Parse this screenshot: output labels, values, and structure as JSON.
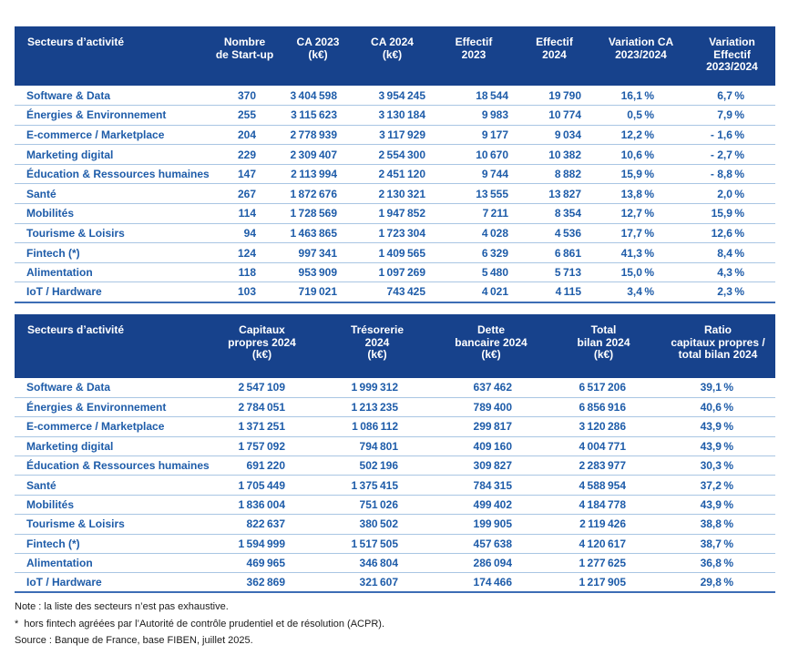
{
  "colors": {
    "header_bg": "#17428C",
    "header_text": "#FFFFFF",
    "row_text": "#1E5CA9",
    "separator": "#A9C6E3",
    "table_bottom_border": "#3D6DB5",
    "note_text": "#1A1A1A"
  },
  "table1": {
    "columns": [
      "Secteurs d’activité",
      "Nombre\nde Start-up",
      "CA 2023\n(k€)",
      "CA 2024\n(k€)",
      "Effectif\n2023",
      "Effectif\n2024",
      "Variation CA\n2023/2024",
      "Variation\nEffectif\n2023/2024"
    ],
    "rows": [
      [
        "Software & Data",
        "370",
        "3 404 598",
        "3 954 245",
        "18 544",
        "19 790",
        "16,1 %",
        "6,7 %"
      ],
      [
        "Énergies & Environnement",
        "255",
        "3 115 623",
        "3 130 184",
        "9 983",
        "10 774",
        "0,5 %",
        "7,9 %"
      ],
      [
        "E-commerce / Marketplace",
        "204",
        "2 778 939",
        "3 117 929",
        "9 177",
        "9 034",
        "12,2 %",
        "- 1,6 %"
      ],
      [
        "Marketing digital",
        "229",
        "2 309 407",
        "2 554 300",
        "10 670",
        "10 382",
        "10,6 %",
        "- 2,7 %"
      ],
      [
        "Éducation & Ressources humaines",
        "147",
        "2 113 994",
        "2 451 120",
        "9 744",
        "8 882",
        "15,9 %",
        "- 8,8 %"
      ],
      [
        "Santé",
        "267",
        "1 872 676",
        "2 130 321",
        "13 555",
        "13 827",
        "13,8 %",
        "2,0 %"
      ],
      [
        "Mobilités",
        "114",
        "1 728 569",
        "1 947 852",
        "7 211",
        "8 354",
        "12,7 %",
        "15,9 %"
      ],
      [
        "Tourisme & Loisirs",
        "94",
        "1 463 865",
        "1 723 304",
        "4 028",
        "4 536",
        "17,7 %",
        "12,6 %"
      ],
      [
        "Fintech (*)",
        "124",
        "997 341",
        "1 409 565",
        "6 329",
        "6 861",
        "41,3 %",
        "8,4 %"
      ],
      [
        "Alimentation",
        "118",
        "953 909",
        "1 097 269",
        "5 480",
        "5 713",
        "15,0 %",
        "4,3 %"
      ],
      [
        "IoT / Hardware",
        "103",
        "719 021",
        "743 425",
        "4 021",
        "4 115",
        "3,4 %",
        "2,3 %"
      ]
    ]
  },
  "table2": {
    "columns": [
      "Secteurs d’activité",
      "Capitaux\npropres 2024\n(k€)",
      "Trésorerie\n2024\n(k€)",
      "Dette\nbancaire 2024\n(k€)",
      "Total\nbilan 2024\n(k€)",
      "Ratio\ncapitaux propres /\ntotal bilan 2024"
    ],
    "rows": [
      [
        "Software & Data",
        "2 547 109",
        "1 999 312",
        "637 462",
        "6 517 206",
        "39,1 %"
      ],
      [
        "Énergies & Environnement",
        "2 784 051",
        "1 213 235",
        "789 400",
        "6 856 916",
        "40,6 %"
      ],
      [
        "E-commerce / Marketplace",
        "1 371 251",
        "1 086 112",
        "299 817",
        "3 120 286",
        "43,9 %"
      ],
      [
        "Marketing digital",
        "1 757 092",
        "794 801",
        "409 160",
        "4 004 771",
        "43,9 %"
      ],
      [
        "Éducation & Ressources humaines",
        "691 220",
        "502 196",
        "309 827",
        "2 283 977",
        "30,3 %"
      ],
      [
        "Santé",
        "1 705 449",
        "1 375 415",
        "784 315",
        "4 588 954",
        "37,2 %"
      ],
      [
        "Mobilités",
        "1 836 004",
        "751 026",
        "499 402",
        "4 184 778",
        "43,9 %"
      ],
      [
        "Tourisme & Loisirs",
        "822 637",
        "380 502",
        "199 905",
        "2 119 426",
        "38,8 %"
      ],
      [
        "Fintech (*)",
        "1 594 999",
        "1 517 505",
        "457 638",
        "4 120 617",
        "38,7 %"
      ],
      [
        "Alimentation",
        "469 965",
        "346 804",
        "286 094",
        "1 277 625",
        "36,8 %"
      ],
      [
        "IoT / Hardware",
        "362 869",
        "321 607",
        "174 466",
        "1 217 905",
        "29,8 %"
      ]
    ]
  },
  "notes": [
    "Note : la liste des secteurs n’est pas exhaustive.",
    "*  hors fintech agréées par l’Autorité de contrôle prudentiel et de résolution (ACPR).",
    "Source : Banque de France, base FIBEN, juillet 2025."
  ]
}
